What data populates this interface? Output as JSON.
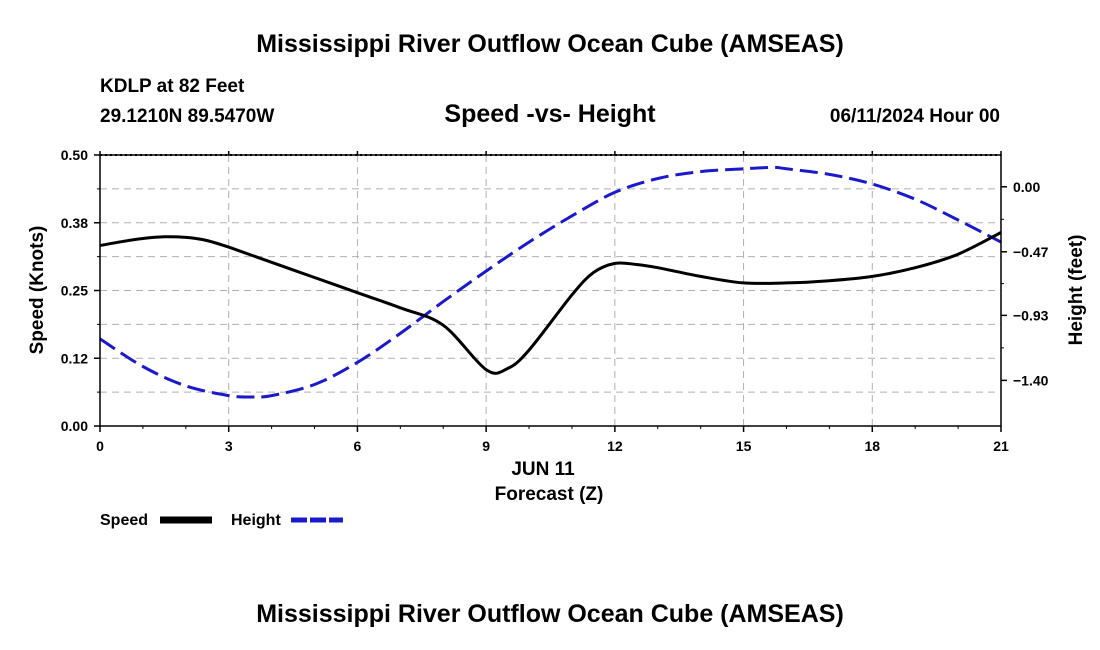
{
  "header": {
    "title": "Mississippi River Outflow Ocean Cube (AMSEAS)",
    "station": "KDLP at 82 Feet",
    "coords": "29.1210N  89.5470W",
    "date": "06/11/2024 Hour 00"
  },
  "footer": {
    "title": "Mississippi River Outflow Ocean Cube (AMSEAS)"
  },
  "chart_data": {
    "type": "line",
    "title": "Speed -vs- Height",
    "xlabel": "Forecast (Z)",
    "date_label": "JUN 11",
    "ylabel": "Speed (Knots)",
    "y2label": "Height (feet)",
    "xlim": [
      0,
      21
    ],
    "ylim": [
      0,
      0.5
    ],
    "y2lim": [
      -1.73,
      0.23
    ],
    "x_ticks": [
      "0",
      "3",
      "6",
      "9",
      "12",
      "15",
      "18",
      "21"
    ],
    "x_tick_values": [
      0,
      3,
      6,
      9,
      12,
      15,
      18,
      21
    ],
    "y_ticks": [
      "0.00",
      "0.12",
      "0.25",
      "0.38",
      "0.50"
    ],
    "y_tick_values": [
      0,
      0.125,
      0.25,
      0.375,
      0.5
    ],
    "y2_ticks": [
      "0.00",
      "−0.47",
      "−0.93",
      "−1.40"
    ],
    "y2_tick_values": [
      0,
      -0.47,
      -0.93,
      -1.4
    ],
    "grid": true,
    "colors": {
      "speed": "#000000",
      "height": "#1a1acc",
      "grid": "#b0b0b0"
    },
    "series": [
      {
        "name": "Speed",
        "axis": "left",
        "style": "solid",
        "x": [
          0,
          0.5,
          1,
          1.5,
          2,
          2.5,
          3,
          4,
          5,
          6,
          7,
          8,
          9,
          9.5,
          10,
          11,
          11.5,
          12,
          12.5,
          13,
          14,
          15,
          16,
          17,
          18,
          19,
          20,
          21
        ],
        "values": [
          0.333,
          0.34,
          0.346,
          0.349,
          0.348,
          0.342,
          0.33,
          0.302,
          0.274,
          0.246,
          0.218,
          0.186,
          0.104,
          0.106,
          0.14,
          0.242,
          0.283,
          0.3,
          0.298,
          0.292,
          0.276,
          0.264,
          0.264,
          0.268,
          0.276,
          0.292,
          0.317,
          0.357
        ]
      },
      {
        "name": "Height",
        "axis": "right",
        "style": "dashed",
        "x": [
          0,
          1,
          2,
          3,
          3.5,
          4,
          5,
          6,
          7,
          8,
          9,
          10,
          11,
          12,
          13,
          14,
          15,
          15.7,
          16,
          17,
          18,
          19,
          20,
          21
        ],
        "values": [
          -1.1,
          -1.3,
          -1.44,
          -1.51,
          -1.52,
          -1.51,
          -1.43,
          -1.27,
          -1.06,
          -0.83,
          -0.61,
          -0.4,
          -0.21,
          -0.04,
          0.06,
          0.11,
          0.13,
          0.14,
          0.13,
          0.09,
          0.02,
          -0.09,
          -0.24,
          -0.4
        ]
      }
    ],
    "legend": {
      "position": "bottom-left",
      "entries": [
        "Speed",
        "Height"
      ]
    }
  }
}
